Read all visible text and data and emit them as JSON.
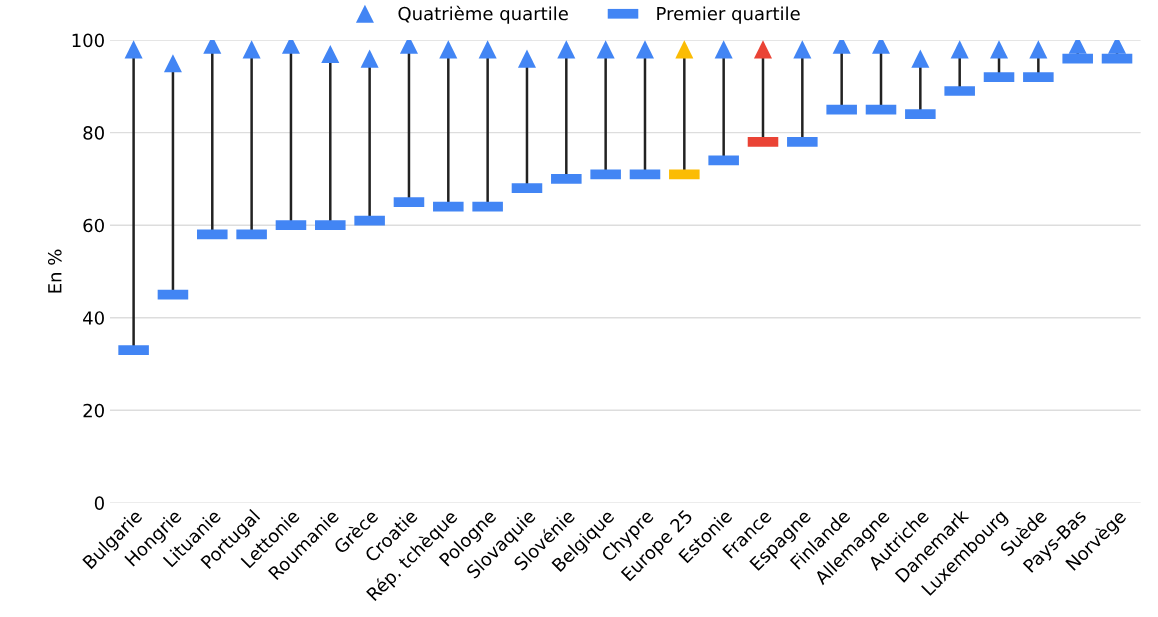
{
  "chart_data": {
    "type": "scatter",
    "ylabel": "En %",
    "categories": [
      "Bulgarie",
      "Hongrie",
      "Lituanie",
      "Portugal",
      "Lettonie",
      "Roumanie",
      "Grèce",
      "Croatie",
      "Rép. tchèque",
      "Pologne",
      "Slovaquie",
      "Slovénie",
      "Belgique",
      "Chypre",
      "Europe 25",
      "Estonie",
      "France",
      "Espagne",
      "Finlande",
      "Allemagne",
      "Autriche",
      "Danemark",
      "Luxembourg",
      "Suède",
      "Pays-Bas",
      "Norvège"
    ],
    "series": [
      {
        "name": "Quatrième quartile",
        "marker": "triangle",
        "color": "#4285f4",
        "colors": [
          "#4285f4",
          "#4285f4",
          "#4285f4",
          "#4285f4",
          "#4285f4",
          "#4285f4",
          "#4285f4",
          "#4285f4",
          "#4285f4",
          "#4285f4",
          "#4285f4",
          "#4285f4",
          "#4285f4",
          "#4285f4",
          "#fbbc04",
          "#4285f4",
          "#ea4335",
          "#4285f4",
          "#4285f4",
          "#4285f4",
          "#4285f4",
          "#4285f4",
          "#4285f4",
          "#4285f4",
          "#4285f4",
          "#4285f4"
        ],
        "values": [
          98,
          95,
          99,
          98,
          99,
          97,
          96,
          99,
          98,
          98,
          96,
          98,
          98,
          98,
          98,
          98,
          98,
          98,
          99,
          99,
          96,
          98,
          98,
          98,
          99,
          99
        ]
      },
      {
        "name": "Premier quartile",
        "marker": "square",
        "color": "#4285f4",
        "colors": [
          "#4285f4",
          "#4285f4",
          "#4285f4",
          "#4285f4",
          "#4285f4",
          "#4285f4",
          "#4285f4",
          "#4285f4",
          "#4285f4",
          "#4285f4",
          "#4285f4",
          "#4285f4",
          "#4285f4",
          "#4285f4",
          "#fbbc04",
          "#4285f4",
          "#ea4335",
          "#4285f4",
          "#4285f4",
          "#4285f4",
          "#4285f4",
          "#4285f4",
          "#4285f4",
          "#4285f4",
          "#4285f4",
          "#4285f4"
        ],
        "values": [
          33,
          45,
          58,
          58,
          60,
          60,
          61,
          65,
          64,
          64,
          68,
          70,
          71,
          71,
          71,
          74,
          78,
          78,
          85,
          85,
          84,
          89,
          92,
          92,
          96,
          96
        ]
      }
    ],
    "ylim": [
      0,
      100
    ],
    "yticks": [
      0,
      20,
      40,
      60,
      80,
      100
    ],
    "grid": "y",
    "legend": "top"
  }
}
